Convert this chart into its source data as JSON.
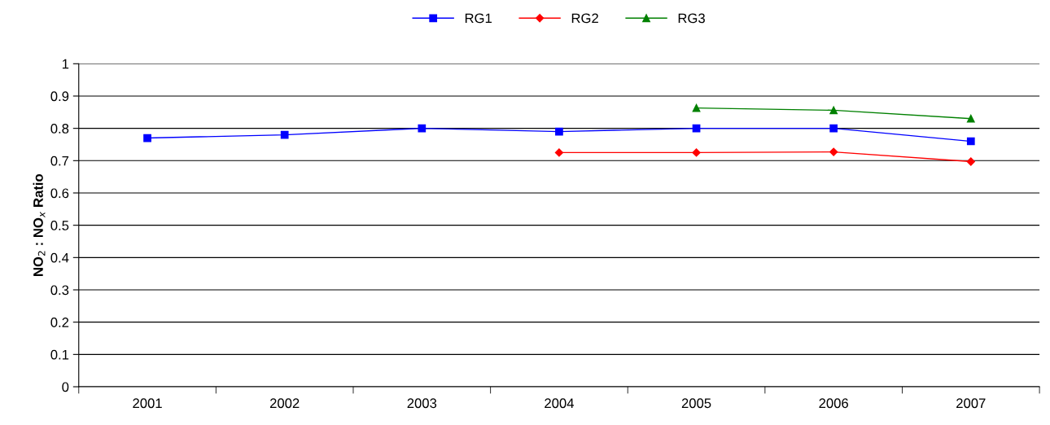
{
  "chart_data": {
    "type": "line",
    "ylabel": "NO$_{2}$ : NO$_{x}$ Ratio",
    "categories": [
      "2001",
      "2002",
      "2003",
      "2004",
      "2005",
      "2006",
      "2007"
    ],
    "series": [
      {
        "name": "RG1",
        "color": "#0000ff",
        "marker": "square",
        "values": [
          0.77,
          0.78,
          0.8,
          0.79,
          0.8,
          0.8,
          0.76
        ]
      },
      {
        "name": "RG2",
        "color": "#ff0000",
        "marker": "diamond",
        "values": [
          null,
          null,
          null,
          0.725,
          0.725,
          0.727,
          0.697
        ]
      },
      {
        "name": "RG3",
        "color": "#008000",
        "marker": "triangle",
        "values": [
          null,
          null,
          null,
          null,
          0.863,
          0.856,
          0.83
        ]
      }
    ],
    "ylim": [
      0,
      1
    ],
    "yticks": [
      0,
      0.1,
      0.2,
      0.3,
      0.4,
      0.5,
      0.6,
      0.7,
      0.8,
      0.9,
      1
    ],
    "grid": "y",
    "legend": "top",
    "line_style": "solid"
  }
}
